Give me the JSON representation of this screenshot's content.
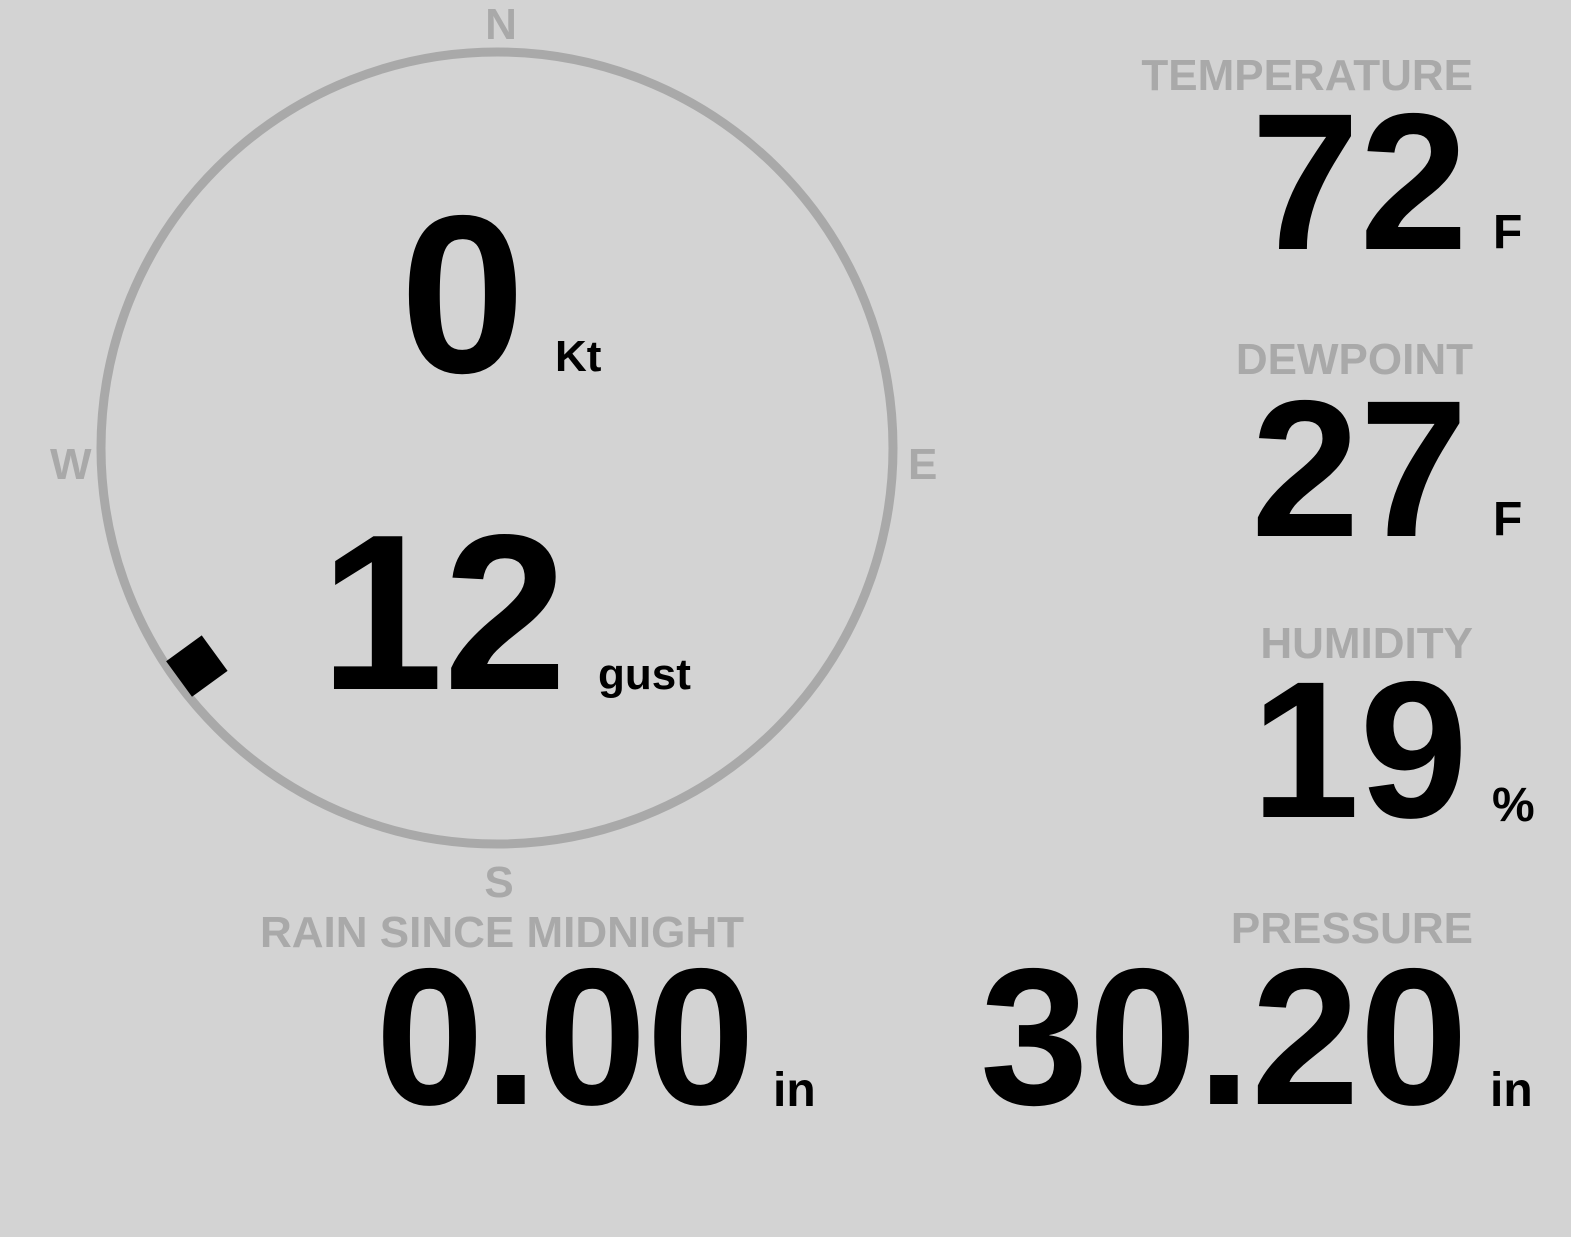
{
  "wind": {
    "compass": {
      "n": "N",
      "s": "S",
      "e": "E",
      "w": "W"
    },
    "speed": "0",
    "speed_unit": "Kt",
    "gust": "12",
    "gust_unit": "gust",
    "direction_deg": 234
  },
  "temperature": {
    "label": "TEMPERATURE",
    "value": "72",
    "unit": "F"
  },
  "dewpoint": {
    "label": "DEWPOINT",
    "value": "27",
    "unit": "F"
  },
  "humidity": {
    "label": "HUMIDITY",
    "value": "19",
    "unit": "%"
  },
  "rain": {
    "label": "RAIN SINCE MIDNIGHT",
    "value": "0.00",
    "unit": "in"
  },
  "pressure": {
    "label": "PRESSURE",
    "value": "30.20",
    "unit": "in"
  },
  "colors": {
    "background": "#d3d3d3",
    "label": "#a9a9a9",
    "value": "#000000"
  }
}
